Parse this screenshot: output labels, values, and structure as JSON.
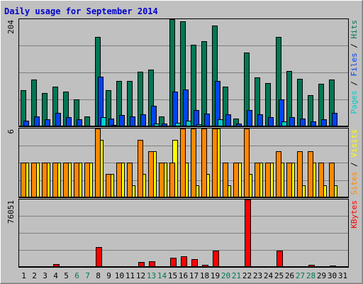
{
  "chart_data": {
    "type": "bar",
    "title": "Daily usage for September 2014",
    "days": [
      "1",
      "2",
      "3",
      "4",
      "5",
      "6",
      "7",
      "8",
      "9",
      "10",
      "11",
      "12",
      "13",
      "14",
      "15",
      "16",
      "17",
      "18",
      "19",
      "20",
      "21",
      "22",
      "23",
      "24",
      "25",
      "26",
      "27",
      "28",
      "29",
      "30",
      "31"
    ],
    "weekend_days": [
      "6",
      "7",
      "13",
      "14",
      "20",
      "21",
      "27",
      "28"
    ],
    "panels": [
      {
        "name": "hits-files-pages",
        "max_label": "204",
        "ymax": 204,
        "side_label": [
          "Pages",
          " / ",
          "Files",
          " / ",
          "Hits"
        ],
        "side_colors": [
          "#00cccc",
          "#000000",
          "#0044ee",
          "#000000",
          "#007755"
        ],
        "series": [
          {
            "key": "hits",
            "color": "#007755",
            "values": [
              68,
              88,
              62,
              75,
              65,
              50,
              18,
              170,
              68,
              85,
              85,
              104,
              108,
              18,
              204,
              200,
              155,
              162,
              192,
              75,
              14,
              140,
              92,
              82,
              170,
              105,
              90,
              58,
              80,
              88,
              0
            ]
          },
          {
            "key": "files",
            "color": "#0044ee",
            "values": [
              10,
              18,
              12,
              24,
              16,
              12,
              0,
              94,
              14,
              20,
              18,
              22,
              38,
              4,
              65,
              70,
              30,
              23,
              85,
              22,
              4,
              30,
              22,
              16,
              50,
              16,
              14,
              8,
              12,
              25,
              0
            ]
          },
          {
            "key": "pages",
            "color": "#00cccc",
            "values": [
              0,
              0,
              0,
              0,
              0,
              0,
              0,
              16,
              2,
              0,
              0,
              0,
              4,
              0,
              6,
              10,
              3,
              0,
              12,
              0,
              0,
              0,
              0,
              0,
              8,
              0,
              0,
              0,
              0,
              0,
              0
            ]
          }
        ]
      },
      {
        "name": "visits-sites",
        "max_label": "6",
        "ymax": 6,
        "side_label": [
          "Sites",
          " / ",
          "Visits"
        ],
        "side_colors": [
          "#ff8800",
          "#000000",
          "#ffff00"
        ],
        "series": [
          {
            "key": "visits",
            "color": "#ffff00",
            "values": [
              3,
              3,
              3,
              3,
              3,
              3,
              3,
              5,
              2,
              3,
              1,
              2,
              4,
              3,
              5,
              3,
              1,
              2,
              6,
              1,
              3,
              2,
              3,
              3,
              3,
              3,
              1,
              3,
              1,
              1,
              0
            ]
          },
          {
            "key": "sites",
            "color": "#ff8800",
            "values": [
              3,
              3,
              3,
              3,
              3,
              3,
              3,
              6,
              2,
              3,
              3,
              5,
              4,
              3,
              3,
              6,
              6,
              6,
              6,
              3,
              3,
              6,
              3,
              3,
              4,
              3,
              4,
              4,
              3,
              3,
              0
            ]
          }
        ]
      },
      {
        "name": "kbytes",
        "max_label": "76051",
        "ymax": 76051,
        "side_label": [
          "KBytes"
        ],
        "side_colors": [
          "#ff0000"
        ],
        "series": [
          {
            "key": "kbytes",
            "color": "#ff0000",
            "values": [
              0,
              0,
              0,
              2500,
              0,
              0,
              0,
              22000,
              0,
              0,
              0,
              5000,
              6000,
              0,
              10000,
              11000,
              8000,
              2000,
              18000,
              0,
              0,
              76051,
              0,
              0,
              18000,
              0,
              0,
              2000,
              0,
              1000,
              0
            ]
          }
        ]
      }
    ]
  }
}
